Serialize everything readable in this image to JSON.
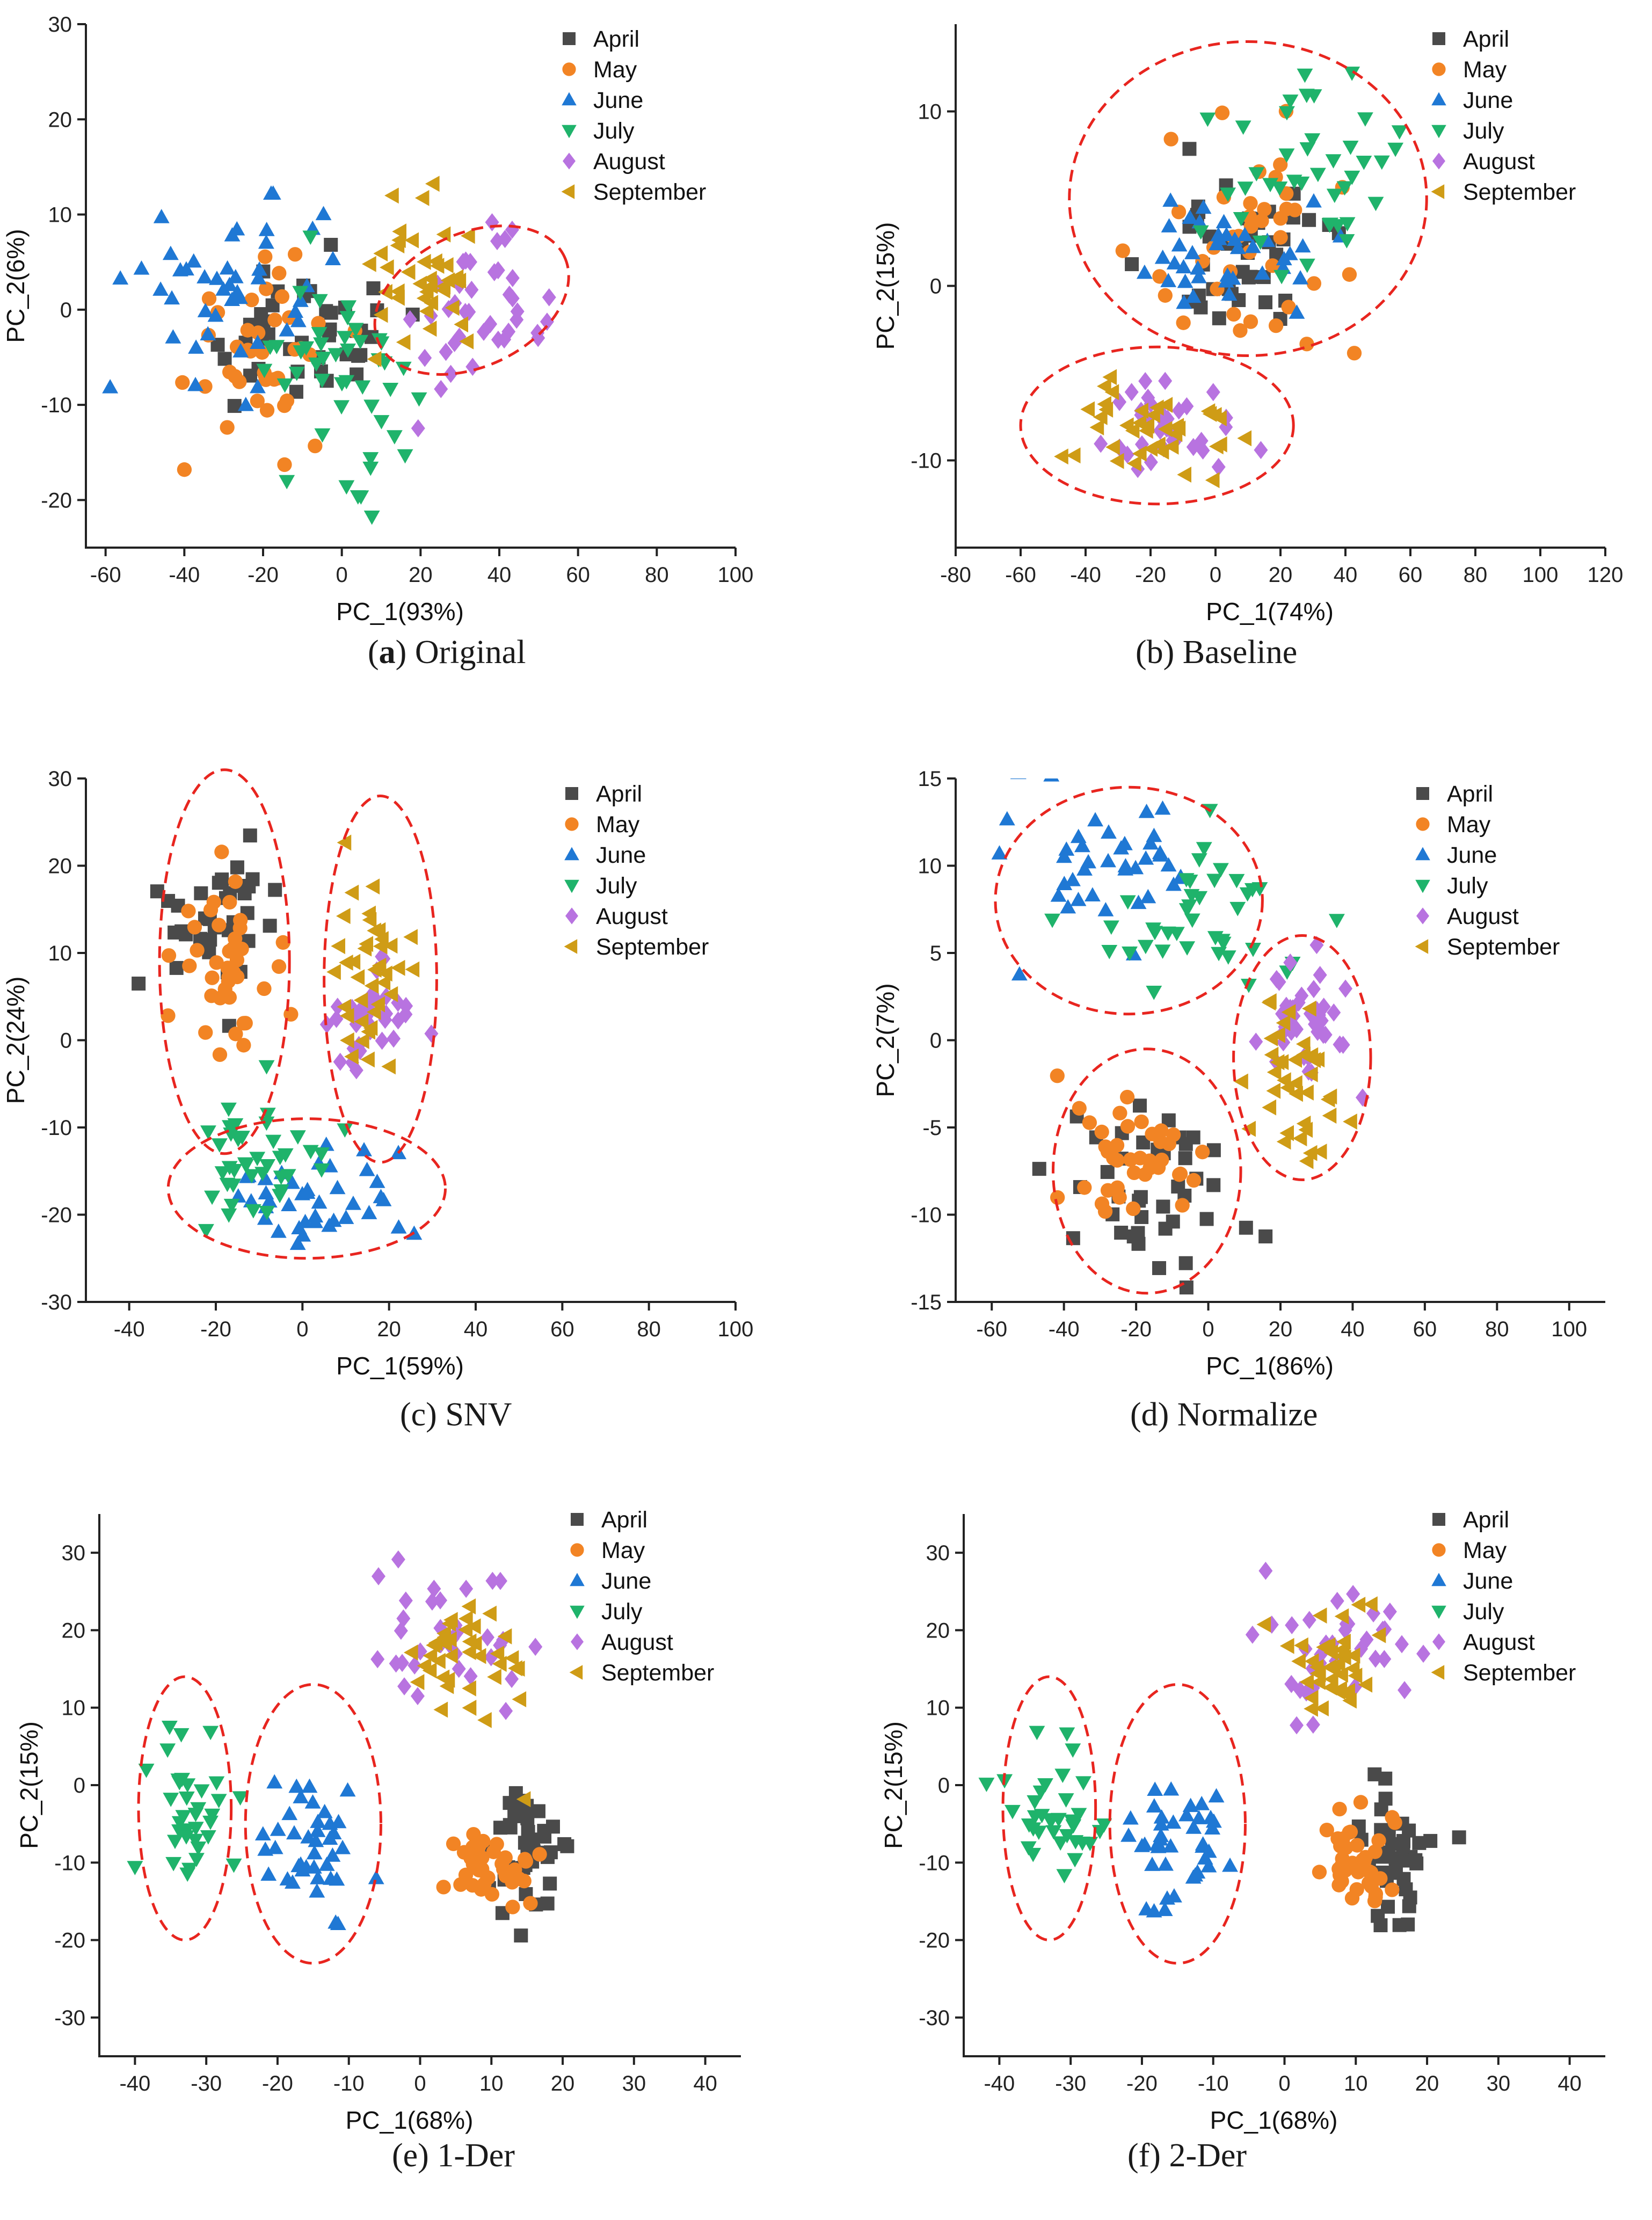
{
  "legend_labels": [
    "April",
    "May",
    "June",
    "July",
    "August",
    "September"
  ],
  "colors": {
    "April": "#4a4a4a",
    "May": "#f28424",
    "June": "#1f78d4",
    "July": "#1fb36b",
    "August": "#b873e0",
    "September": "#cf9c16",
    "ellipse": "#e8251f",
    "axis": "#222222"
  },
  "chart_data": [
    {
      "id": "a",
      "type": "scatter",
      "caption_letter": "(a)",
      "caption_text": "Original",
      "xlabel": "PC_1(93%)",
      "ylabel": "PC_2(6%)",
      "xlim": [
        -65,
        100
      ],
      "ylim": [
        -25,
        30
      ],
      "xticks": [
        -60,
        -40,
        -20,
        0,
        20,
        40,
        60,
        80,
        100
      ],
      "yticks": [
        -20,
        -10,
        0,
        10,
        20,
        30
      ],
      "clusters": [
        {
          "month": "April",
          "cx": -10,
          "cy": -3,
          "sx": 15,
          "sy": 4,
          "n": 40
        },
        {
          "month": "May",
          "cx": -20,
          "cy": -3,
          "sx": 10,
          "sy": 5,
          "n": 40
        },
        {
          "month": "June",
          "cx": -25,
          "cy": 2,
          "sx": 13,
          "sy": 5,
          "n": 45
        },
        {
          "month": "July",
          "cx": -2,
          "cy": -6,
          "sx": 11,
          "sy": 5,
          "n": 45
        },
        {
          "month": "August",
          "cx": 35,
          "cy": -1,
          "sx": 8,
          "sy": 4,
          "n": 40
        },
        {
          "month": "September",
          "cx": 20,
          "cy": 3,
          "sx": 9,
          "sy": 4,
          "n": 40
        }
      ],
      "ellipses": [
        {
          "cx": 33,
          "cy": 1,
          "rx": 26,
          "ry": 7,
          "rot": -25
        }
      ]
    },
    {
      "id": "b",
      "type": "scatter",
      "caption_letter": "(b)",
      "caption_text": "Baseline",
      "xlabel": "PC_1(74%)",
      "ylabel": "PC_2(15%)",
      "xlim": [
        -80,
        120
      ],
      "ylim": [
        -15,
        15
      ],
      "xticks": [
        -80,
        -60,
        -40,
        -20,
        0,
        20,
        40,
        60,
        80,
        100,
        120
      ],
      "yticks": [
        -10,
        0,
        10
      ],
      "clusters": [
        {
          "month": "April",
          "cx": 10,
          "cy": 2,
          "sx": 15,
          "sy": 3,
          "n": 40
        },
        {
          "month": "May",
          "cx": 10,
          "cy": 2,
          "sx": 18,
          "sy": 3,
          "n": 40
        },
        {
          "month": "June",
          "cx": 5,
          "cy": 1.5,
          "sx": 14,
          "sy": 2,
          "n": 40
        },
        {
          "month": "July",
          "cx": 30,
          "cy": 6,
          "sx": 14,
          "sy": 3,
          "n": 40
        },
        {
          "month": "August",
          "cx": -10,
          "cy": -8,
          "sx": 11,
          "sy": 1.5,
          "n": 35
        },
        {
          "month": "September",
          "cx": -20,
          "cy": -8,
          "sx": 12,
          "sy": 1.5,
          "n": 40
        }
      ],
      "ellipses": [
        {
          "cx": 10,
          "cy": 5,
          "rx": 55,
          "ry": 9,
          "rot": 0
        },
        {
          "cx": -18,
          "cy": -8,
          "rx": 42,
          "ry": 4.5,
          "rot": 0
        }
      ]
    },
    {
      "id": "c",
      "type": "scatter",
      "caption_letter": "(c)",
      "caption_text": "SNV",
      "xlabel": "PC_1(59%)",
      "ylabel": "PC_2(24%)",
      "xlim": [
        -50,
        100
      ],
      "ylim": [
        -30,
        30
      ],
      "xticks": [
        -40,
        -20,
        0,
        20,
        40,
        60,
        80,
        100
      ],
      "yticks": [
        -30,
        -20,
        -10,
        0,
        10,
        20,
        30
      ],
      "clusters": [
        {
          "month": "April",
          "cx": -20,
          "cy": 13,
          "sx": 7,
          "sy": 4,
          "n": 35
        },
        {
          "month": "May",
          "cx": -20,
          "cy": 8,
          "sx": 6,
          "sy": 5,
          "n": 40
        },
        {
          "month": "June",
          "cx": 2,
          "cy": -18,
          "sx": 9,
          "sy": 3,
          "n": 40
        },
        {
          "month": "July",
          "cx": -10,
          "cy": -15,
          "sx": 7,
          "sy": 4,
          "n": 40
        },
        {
          "month": "August",
          "cx": 15,
          "cy": 2,
          "sx": 5,
          "sy": 4,
          "n": 40
        },
        {
          "month": "September",
          "cx": 15,
          "cy": 10,
          "sx": 5,
          "sy": 6,
          "n": 40
        }
      ],
      "ellipses": [
        {
          "cx": -18,
          "cy": 9,
          "rx": 15,
          "ry": 22,
          "rot": 0
        },
        {
          "cx": 18,
          "cy": 7,
          "rx": 13,
          "ry": 21,
          "rot": 0
        },
        {
          "cx": 1,
          "cy": -17,
          "rx": 32,
          "ry": 8,
          "rot": 0
        }
      ]
    },
    {
      "id": "d",
      "type": "scatter",
      "caption_letter": "(d)",
      "caption_text": "Normalize",
      "xlabel": "PC_1(86%)",
      "ylabel": "PC_2(7%)",
      "xlim": [
        -70,
        110
      ],
      "ylim": [
        -15,
        15
      ],
      "xticks": [
        -60,
        -40,
        -20,
        0,
        20,
        40,
        60,
        80,
        100
      ],
      "yticks": [
        -15,
        -10,
        -5,
        0,
        5,
        10,
        15
      ],
      "clusters": [
        {
          "month": "April",
          "cx": -15,
          "cy": -9,
          "sx": 14,
          "sy": 2.5,
          "n": 40
        },
        {
          "month": "May",
          "cx": -22,
          "cy": -7,
          "sx": 10,
          "sy": 2,
          "n": 40
        },
        {
          "month": "June",
          "cx": -25,
          "cy": 10,
          "sx": 15,
          "sy": 2,
          "n": 40
        },
        {
          "month": "July",
          "cx": -5,
          "cy": 7,
          "sx": 14,
          "sy": 2.5,
          "n": 40
        },
        {
          "month": "August",
          "cx": 28,
          "cy": 1.5,
          "sx": 6,
          "sy": 2,
          "n": 40
        },
        {
          "month": "September",
          "cx": 25,
          "cy": -2,
          "sx": 6,
          "sy": 2.5,
          "n": 40
        }
      ],
      "ellipses": [
        {
          "cx": -22,
          "cy": 8,
          "rx": 37,
          "ry": 6.5,
          "rot": 0
        },
        {
          "cx": -17,
          "cy": -7.5,
          "rx": 26,
          "ry": 7,
          "rot": 0
        },
        {
          "cx": 26,
          "cy": -1,
          "rx": 19,
          "ry": 7,
          "rot": 0
        }
      ]
    },
    {
      "id": "e",
      "type": "scatter",
      "caption_letter": "(e)",
      "caption_text": "1-Der",
      "xlabel": "PC_1(68%)",
      "ylabel": "PC_2(15%)",
      "xlim": [
        -45,
        45
      ],
      "ylim": [
        -35,
        35
      ],
      "xticks": [
        -40,
        -30,
        -20,
        -10,
        0,
        10,
        20,
        30,
        40
      ],
      "yticks": [
        -30,
        -20,
        -10,
        0,
        10,
        20,
        30
      ],
      "clusters": [
        {
          "month": "April",
          "cx": 15,
          "cy": -9,
          "sx": 2.5,
          "sy": 4,
          "n": 40
        },
        {
          "month": "May",
          "cx": 10,
          "cy": -10,
          "sx": 3,
          "sy": 3,
          "n": 40
        },
        {
          "month": "June",
          "cx": -15,
          "cy": -8,
          "sx": 4,
          "sy": 5,
          "n": 40
        },
        {
          "month": "July",
          "cx": -32,
          "cy": -3,
          "sx": 3,
          "sy": 5,
          "n": 35
        },
        {
          "month": "August",
          "cx": 5,
          "cy": 19,
          "sx": 6,
          "sy": 4,
          "n": 35
        },
        {
          "month": "September",
          "cx": 7,
          "cy": 16,
          "sx": 4,
          "sy": 4,
          "n": 40
        }
      ],
      "ellipses": [
        {
          "cx": -33,
          "cy": -3,
          "rx": 6.5,
          "ry": 17,
          "rot": 0
        },
        {
          "cx": -15,
          "cy": -5,
          "rx": 9.5,
          "ry": 18,
          "rot": 0
        }
      ]
    },
    {
      "id": "f",
      "type": "scatter",
      "caption_letter": "(f)",
      "caption_text": "2-Der",
      "xlabel": "PC_1(68%)",
      "ylabel": "PC_2(15%)",
      "xlim": [
        -45,
        45
      ],
      "ylim": [
        -35,
        35
      ],
      "xticks": [
        -40,
        -30,
        -20,
        -10,
        0,
        10,
        20,
        30,
        40
      ],
      "yticks": [
        -30,
        -20,
        -10,
        0,
        10,
        20,
        30
      ],
      "clusters": [
        {
          "month": "April",
          "cx": 15,
          "cy": -9,
          "sx": 2.5,
          "sy": 4,
          "n": 40
        },
        {
          "month": "May",
          "cx": 10,
          "cy": -10,
          "sx": 3,
          "sy": 3,
          "n": 40
        },
        {
          "month": "June",
          "cx": -15,
          "cy": -8,
          "sx": 4,
          "sy": 5,
          "n": 40
        },
        {
          "month": "July",
          "cx": -32,
          "cy": -3,
          "sx": 3,
          "sy": 5,
          "n": 35
        },
        {
          "month": "August",
          "cx": 5,
          "cy": 19,
          "sx": 6,
          "sy": 4,
          "n": 35
        },
        {
          "month": "September",
          "cx": 7,
          "cy": 16,
          "sx": 4,
          "sy": 4,
          "n": 40
        }
      ],
      "ellipses": [
        {
          "cx": -33,
          "cy": -3,
          "rx": 6.5,
          "ry": 17,
          "rot": 0
        },
        {
          "cx": -15,
          "cy": -5,
          "rx": 9.5,
          "ry": 18,
          "rot": 0
        }
      ]
    }
  ]
}
